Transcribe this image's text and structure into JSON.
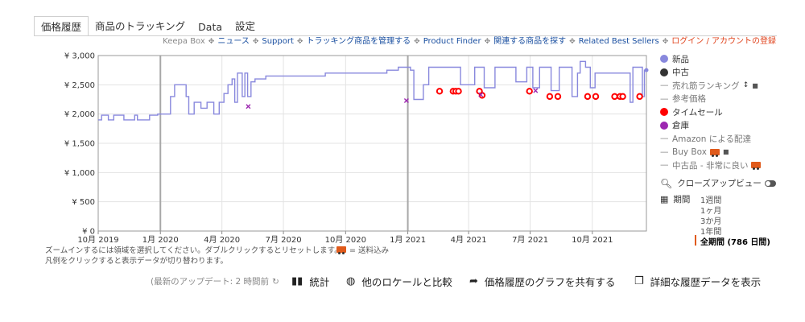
{
  "tabs": [
    {
      "label": "価格履歴",
      "active": true
    },
    {
      "label": "商品のトラッキング"
    },
    {
      "label": "Data"
    },
    {
      "label": "設定"
    }
  ],
  "top_links": {
    "keepa_box": "Keepa Box",
    "news": "ニュース",
    "support": "Support",
    "manage_tracking": "トラッキング商品を管理する",
    "product_finder": "Product Finder",
    "related_search": "関連する商品を探す",
    "related_best": "Related Best Sellers",
    "login": "ログイン / アカウントの登録"
  },
  "legend": {
    "new": "新品",
    "used": "中古",
    "sales_rank": "売れ筋ランキング",
    "reference": "参考価格",
    "lightning": "タイムセール",
    "warehouse": "倉庫",
    "amazon_fba": "Amazon による配達",
    "buybox": "Buy Box",
    "used_very_good": "中古品 - 非常に良い"
  },
  "colors": {
    "new": "#8888dd",
    "used": "#333333",
    "lightning": "#ff0000",
    "warehouse": "#9c27b0",
    "accent": "#e05a1b",
    "link": "#1a4fa0"
  },
  "closeup": "クローズアップビュー",
  "period": {
    "label": "期間",
    "options": [
      "1週間",
      "1ヶ月",
      "3か月",
      "1年間",
      "全期間 (786 日間)"
    ],
    "active_index": 4
  },
  "hints": {
    "zoom": "ズームインするには領域を選択してください。ダブルクリックするとリセットします。",
    "legend": "凡例をクリックすると表示データが切り替わります。",
    "shipping": "= 送料込み"
  },
  "bottom": {
    "updated": "(最新のアップデート: 2 時間前",
    "stats": "統計",
    "compare": "他のロケールと比較",
    "share": "価格履歴のグラフを共有する",
    "details": "詳細な履歴データを表示"
  },
  "chart_data": {
    "type": "line",
    "x_tick_labels": [
      "10月 2019",
      "1月 2020",
      "4月 2020",
      "7月 2020",
      "10月 2020",
      "1月 2021",
      "4月 2021",
      "7月 2021",
      "10月 2021"
    ],
    "y_tick_labels": [
      "¥ 0",
      "¥ 500",
      "¥ 1,000",
      "¥ 1,500",
      "¥ 2,000",
      "¥ 2,500",
      "¥ 3,000"
    ],
    "ylim": [
      0,
      3000
    ],
    "xlim": [
      "2019-10-01",
      "2021-12-20"
    ],
    "grid": true,
    "legend_position": "right",
    "series": [
      {
        "name": "新品",
        "type": "step",
        "points": [
          [
            "2019-10-01",
            1900
          ],
          [
            "2019-10-06",
            1980
          ],
          [
            "2019-10-16",
            1900
          ],
          [
            "2019-10-24",
            1980
          ],
          [
            "2019-11-08",
            1900
          ],
          [
            "2019-11-24",
            1980
          ],
          [
            "2019-11-28",
            1900
          ],
          [
            "2019-12-16",
            1980
          ],
          [
            "2019-12-28",
            2000
          ],
          [
            "2020-01-16",
            2300
          ],
          [
            "2020-01-22",
            2500
          ],
          [
            "2020-02-08",
            2300
          ],
          [
            "2020-02-12",
            2000
          ],
          [
            "2020-02-20",
            2200
          ],
          [
            "2020-03-01",
            2100
          ],
          [
            "2020-03-10",
            2200
          ],
          [
            "2020-03-20",
            2000
          ],
          [
            "2020-03-28",
            2200
          ],
          [
            "2020-04-04",
            2350
          ],
          [
            "2020-04-10",
            2500
          ],
          [
            "2020-04-16",
            2600
          ],
          [
            "2020-04-20",
            2200
          ],
          [
            "2020-04-24",
            2700
          ],
          [
            "2020-05-01",
            2300
          ],
          [
            "2020-05-05",
            2700
          ],
          [
            "2020-05-09",
            2300
          ],
          [
            "2020-05-14",
            2550
          ],
          [
            "2020-05-20",
            2600
          ],
          [
            "2020-06-05",
            2650
          ],
          [
            "2020-09-01",
            2700
          ],
          [
            "2020-12-01",
            2750
          ],
          [
            "2020-12-18",
            2800
          ],
          [
            "2021-01-05",
            2750
          ],
          [
            "2021-01-10",
            2250
          ],
          [
            "2021-01-24",
            2500
          ],
          [
            "2021-02-01",
            2800
          ],
          [
            "2021-03-20",
            2500
          ],
          [
            "2021-04-10",
            2800
          ],
          [
            "2021-04-24",
            2450
          ],
          [
            "2021-05-10",
            2800
          ],
          [
            "2021-06-10",
            2550
          ],
          [
            "2021-06-26",
            2800
          ],
          [
            "2021-07-05",
            2450
          ],
          [
            "2021-07-15",
            2800
          ],
          [
            "2021-08-01",
            2400
          ],
          [
            "2021-08-13",
            2800
          ],
          [
            "2021-09-01",
            2300
          ],
          [
            "2021-09-09",
            2700
          ],
          [
            "2021-09-13",
            2900
          ],
          [
            "2021-09-21",
            2800
          ],
          [
            "2021-09-28",
            2450
          ],
          [
            "2021-10-05",
            2700
          ],
          [
            "2021-11-26",
            2200
          ],
          [
            "2021-11-30",
            2800
          ],
          [
            "2021-12-14",
            2300
          ],
          [
            "2021-12-17",
            2750
          ],
          [
            "2021-12-20",
            2750
          ]
        ]
      },
      {
        "name": "タイムセール",
        "points": [
          [
            "2021-02-17",
            2390
          ],
          [
            "2021-03-09",
            2390
          ],
          [
            "2021-03-13",
            2390
          ],
          [
            "2021-03-17",
            2390
          ],
          [
            "2021-04-17",
            2390
          ],
          [
            "2021-04-21",
            2320
          ],
          [
            "2021-06-30",
            2390
          ],
          [
            "2021-07-30",
            2300
          ],
          [
            "2021-08-11",
            2300
          ],
          [
            "2021-09-24",
            2300
          ],
          [
            "2021-10-06",
            2300
          ],
          [
            "2021-11-03",
            2300
          ],
          [
            "2021-11-11",
            2300
          ],
          [
            "2021-11-15",
            2300
          ],
          [
            "2021-12-10",
            2300
          ]
        ]
      },
      {
        "name": "倉庫",
        "points": [
          [
            "2020-05-10",
            2130
          ],
          [
            "2020-12-30",
            2230
          ],
          [
            "2021-04-19",
            2330
          ],
          [
            "2021-07-09",
            2400
          ]
        ]
      }
    ]
  }
}
